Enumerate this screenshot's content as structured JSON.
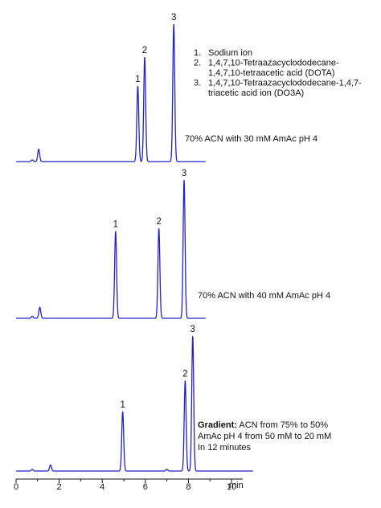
{
  "chart_data": {
    "type": "line",
    "x_axis": {
      "unit_label": "min",
      "range": [
        0,
        11
      ],
      "ticks": [
        {
          "value": 0,
          "label": "0"
        },
        {
          "value": 2,
          "label": "2"
        },
        {
          "value": 4,
          "label": "4"
        },
        {
          "value": 6,
          "label": "6"
        },
        {
          "value": 8,
          "label": "8"
        },
        {
          "value": 10,
          "label": "10"
        }
      ]
    },
    "legend": [
      {
        "number": "1.",
        "lines": [
          "Sodium ion"
        ]
      },
      {
        "number": "2.",
        "lines": [
          "1,4,7,10-Tetraazacyclododecane-",
          "1,4,7,10-tetraacetic acid (DOTA)"
        ]
      },
      {
        "number": "3.",
        "lines": [
          "1,4,7,10-Tetraazacyclododecane-1,4,7-",
          "triacetic acid ion (DO3A)"
        ]
      }
    ],
    "line_color": "#2222cc",
    "panels": [
      {
        "lines": [
          {
            "bold": "",
            "text": "70% ACN with 30 mM AmAc pH 4"
          }
        ],
        "x_end": 8.8,
        "peaks": [
          {
            "label": "",
            "time": 0.75,
            "height": 0.012
          },
          {
            "label": "",
            "time": 1.05,
            "height": 0.09
          },
          {
            "label": "1",
            "time": 5.65,
            "height": 0.55
          },
          {
            "label": "2",
            "time": 5.97,
            "height": 0.76
          },
          {
            "label": "3",
            "time": 7.32,
            "height": 1.0
          }
        ]
      },
      {
        "lines": [
          {
            "bold": "",
            "text": "70% ACN with 40 mM AmAc pH 4"
          }
        ],
        "x_end": 8.8,
        "peaks": [
          {
            "label": "",
            "time": 0.75,
            "height": 0.015
          },
          {
            "label": "",
            "time": 1.1,
            "height": 0.08
          },
          {
            "label": "1",
            "time": 4.62,
            "height": 0.63
          },
          {
            "label": "2",
            "time": 6.63,
            "height": 0.65
          },
          {
            "label": "3",
            "time": 7.8,
            "height": 1.0
          }
        ]
      },
      {
        "lines": [
          {
            "bold": "Gradient:",
            "text": " ACN from 75% to 50%"
          },
          {
            "bold": "",
            "text": "AmAc pH 4 from 50 mM to 20 mM"
          },
          {
            "bold": "",
            "text": "In 12 minutes"
          }
        ],
        "x_end": 11,
        "peaks": [
          {
            "label": "",
            "time": 0.75,
            "height": 0.012
          },
          {
            "label": "",
            "time": 1.6,
            "height": 0.045
          },
          {
            "label": "1",
            "time": 4.95,
            "height": 0.44
          },
          {
            "label": "",
            "time": 7.0,
            "height": 0.012
          },
          {
            "label": "2",
            "time": 7.85,
            "height": 0.67
          },
          {
            "label": "3",
            "time": 8.2,
            "height": 1.0
          }
        ]
      }
    ]
  }
}
